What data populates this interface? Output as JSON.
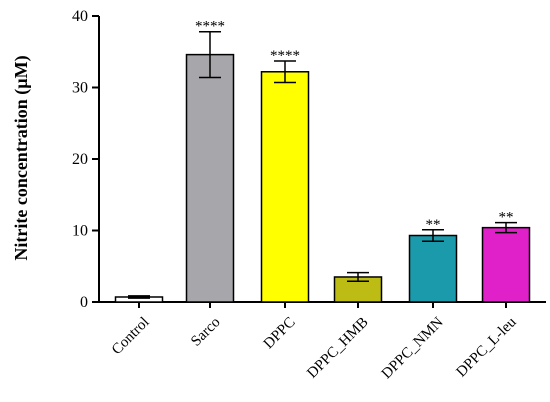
{
  "chart_data": {
    "type": "bar",
    "title": "",
    "xlabel": "",
    "ylabel": "Nitrite concentration (µM)",
    "ylim": [
      0,
      40
    ],
    "yticks": [
      0,
      10,
      20,
      30,
      40
    ],
    "grid": false,
    "categories": [
      "Control",
      "Sarco",
      "DPPC",
      "DPPC_HMB",
      "DPPC_NMN",
      "DPPC_L-leu"
    ],
    "values": [
      0.7,
      34.6,
      32.2,
      3.5,
      9.3,
      10.4
    ],
    "errors": [
      0.15,
      3.2,
      1.5,
      0.6,
      0.8,
      0.7
    ],
    "significance": [
      "",
      "****",
      "****",
      "",
      "**",
      "**"
    ],
    "colors": [
      "#ffffff",
      "#a6a6ab",
      "#ffff00",
      "#bcbc14",
      "#1a9aaa",
      "#e020c8"
    ]
  }
}
